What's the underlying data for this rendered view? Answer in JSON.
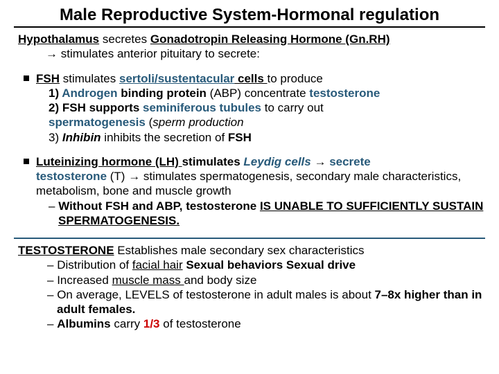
{
  "colors": {
    "teal": "#285a7a",
    "red": "#cc0000",
    "black": "#000000",
    "bg": "#ffffff"
  },
  "typography": {
    "title_fontsize": 24,
    "body_fontsize": 17,
    "font_family": "Arial"
  },
  "title": "Male Reproductive System-Hormonal regulation",
  "intro": {
    "l1a": "Hypothalamus",
    "l1b": " secretes ",
    "l1c": "Gonadotropin Releasing Hormone (Gn.RH)",
    "l2arrow": "→ ",
    "l2": "stimulates anterior pituitary to secrete:"
  },
  "fsh": {
    "head_a": "FSH",
    "head_b": " stimulates ",
    "head_c": "sertoli/sustentacular",
    "head_d": " cells ",
    "head_e": "to produce",
    "p1a": "1)",
    "p1b": " Androgen",
    "p1c": " binding protein ",
    "p1d": "(ABP) concentrate ",
    "p1e": "testosterone",
    "p2a": "2) ",
    "p2b": "FSH supports ",
    "p2c": "seminiferous tubules",
    "p2d": " to carry out",
    "p2e": "spermatogenesis",
    "p2f": " (",
    "p2g": "sperm production",
    "p3a": "3) ",
    "p3b": "Inhibin",
    "p3c": " inhibits the secretion of ",
    "p3d": "FSH"
  },
  "lh": {
    "h1": "Luteinizing hormone (LH) ",
    "h2": "stimulates ",
    "h3": "Leydig cells",
    "arrow1": " → ",
    "h4": "secrete",
    "t1": "testosterone",
    "t2": " (T) ",
    "arrow2": "→ ",
    "t3": "stimulates spermatogenesis, secondary male characteristics, metabolism, bone and muscle growth",
    "w1": "Without FSH and ABP,  testosterone ",
    "w2": "IS UNABLE TO SUFFICIENTLY SUSTAIN SPERMATOGENESIS."
  },
  "testo": {
    "h1": "TESTOSTERONE",
    "h2": " Establishes male secondary sex characteristics",
    "d1a": "Distribution of ",
    "d1b": "facial hair",
    "d1c": " Sexual behaviors",
    "d1d": " Sexual drive",
    "d2a": "Increased ",
    "d2b": "muscle mass ",
    "d2c": "and body size",
    "d3a": "On average, LEVELS of testosterone in adult males is about ",
    "d3b": "7–8x higher than in adult females.",
    "d4a": "Albumins",
    "d4b": " carry ",
    "d4c": "1/3",
    "d4d": " of testosterone"
  }
}
